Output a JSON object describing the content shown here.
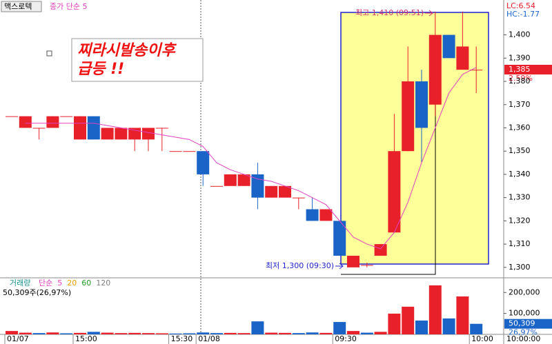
{
  "header": {
    "stock": "맥스로텍",
    "indicator": "종가 단순 5",
    "lc": "LC:6.54",
    "hc": "HC:-1.77"
  },
  "annotation": {
    "line1": "찌라시발송이후",
    "line2": "급등 !!"
  },
  "markers": {
    "high": "최고 1,410 (09:51)",
    "low": "최저 1,300 (09:30)"
  },
  "current": {
    "price": "1,385",
    "change": "2.59%"
  },
  "time_label": "10:00:00",
  "chart_data": [
    {
      "type": "candlestick",
      "categories": [
        "01/07",
        null,
        null,
        null,
        null,
        "15:00",
        null,
        null,
        null,
        null,
        null,
        null,
        "15:30",
        null,
        "01/08",
        null,
        null,
        null,
        null,
        null,
        null,
        null,
        null,
        null,
        "09:30",
        null,
        null,
        null,
        null,
        null,
        null,
        null,
        null,
        null,
        "10:00"
      ],
      "open": [
        1365,
        1360,
        1360,
        1360,
        1365,
        1355,
        1365,
        1355,
        1355,
        1355,
        1355,
        1360,
        1350,
        1350,
        1350,
        1335,
        1335,
        1335,
        1340,
        1330,
        1330,
        1330,
        1325,
        1320,
        1320,
        1300,
        1301,
        1305,
        1315,
        1350,
        1380,
        1370,
        1400,
        1385,
        1385
      ],
      "high": [
        1365,
        1365,
        1360,
        1365,
        1365,
        1365,
        1365,
        1360,
        1360,
        1360,
        1360,
        1360,
        1350,
        1350,
        1350,
        1335,
        1340,
        1340,
        1345,
        1335,
        1335,
        1330,
        1330,
        1325,
        1320,
        1305,
        1302,
        1310,
        1366,
        1395,
        1385,
        1410,
        1400,
        1410,
        1395
      ],
      "low": [
        1365,
        1360,
        1355,
        1360,
        1365,
        1355,
        1355,
        1355,
        1355,
        1350,
        1350,
        1350,
        1350,
        1350,
        1335,
        1335,
        1335,
        1335,
        1325,
        1330,
        1330,
        1325,
        1320,
        1320,
        1305,
        1300,
        1300,
        1305,
        1315,
        1350,
        1345,
        1365,
        1390,
        1385,
        1375
      ],
      "close": [
        1365,
        1365,
        1360,
        1365,
        1365,
        1365,
        1355,
        1360,
        1360,
        1360,
        1360,
        1360,
        1350,
        1350,
        1340,
        1335,
        1340,
        1340,
        1330,
        1335,
        1335,
        1330,
        1320,
        1325,
        1305,
        1305,
        1301,
        1310,
        1350,
        1380,
        1360,
        1400,
        1390,
        1395,
        1385
      ],
      "ma": {
        "color": "#e040c0",
        "values": [
          null,
          1362,
          1362,
          1362,
          1362,
          1362,
          1362,
          1361,
          1360,
          1359,
          1358,
          1357,
          1356,
          1355,
          1352,
          1345,
          1342,
          1340,
          1338,
          1337,
          1335,
          1333,
          1330,
          1327,
          1320,
          1313,
          1310,
          1308,
          1315,
          1328,
          1345,
          1360,
          1375,
          1383,
          1386
        ]
      },
      "up_color": "#e8202a",
      "down_color": "#1a64c8",
      "ylim": [
        1295.5,
        1415
      ],
      "yticks": [
        {
          "value": 1300,
          "label": "1,300"
        },
        {
          "value": 1310,
          "label": "1,310"
        },
        {
          "value": 1320,
          "label": "1,320"
        },
        {
          "value": 1330,
          "label": "1,330"
        },
        {
          "value": 1340,
          "label": "1,340"
        },
        {
          "value": 1350,
          "label": "1,350"
        },
        {
          "value": 1360,
          "label": "1,360"
        },
        {
          "value": 1370,
          "label": "1,370"
        },
        {
          "value": 1380,
          "label": "1,380"
        },
        {
          "value": 1390,
          "label": "1,390"
        },
        {
          "value": 1400,
          "label": "1,400"
        }
      ]
    },
    {
      "type": "bar",
      "title": "거래량",
      "legend": [
        "단순",
        "5",
        "20",
        "60",
        "120"
      ],
      "legend_colors": [
        "#e040c0",
        "#e040c0",
        "#f0a000",
        "#20a020",
        "#808080"
      ],
      "summary": "50,309주(26,97%)",
      "last_value": "50,309",
      "last_ratio": "26,97%",
      "values": [
        16000,
        8000,
        6000,
        9000,
        5000,
        7000,
        12000,
        8000,
        6000,
        7000,
        6000,
        5000,
        4000,
        5000,
        9000,
        6000,
        7000,
        6000,
        62000,
        8000,
        7000,
        6000,
        9000,
        7000,
        59000,
        16000,
        8000,
        12000,
        99000,
        132000,
        66000,
        234000,
        76000,
        181000,
        50309
      ],
      "colors": [
        "#e8202a",
        "#e8202a",
        "#1a64c8",
        "#e8202a",
        "#1a64c8",
        "#e8202a",
        "#1a64c8",
        "#e8202a",
        "#e8202a",
        "#e8202a",
        "#e8202a",
        "#e8202a",
        "#1a64c8",
        "#1a64c8",
        "#1a64c8",
        "#1a64c8",
        "#e8202a",
        "#e8202a",
        "#1a64c8",
        "#e8202a",
        "#e8202a",
        "#1a64c8",
        "#1a64c8",
        "#e8202a",
        "#1a64c8",
        "#e8202a",
        "#1a64c8",
        "#e8202a",
        "#e8202a",
        "#e8202a",
        "#1a64c8",
        "#e8202a",
        "#1a64c8",
        "#e8202a",
        "#1a64c8"
      ],
      "ylim": [
        0,
        270000
      ],
      "yticks": [
        {
          "value": 100000,
          "label": "100,000"
        },
        {
          "value": 200000,
          "label": "200,000"
        }
      ]
    }
  ]
}
